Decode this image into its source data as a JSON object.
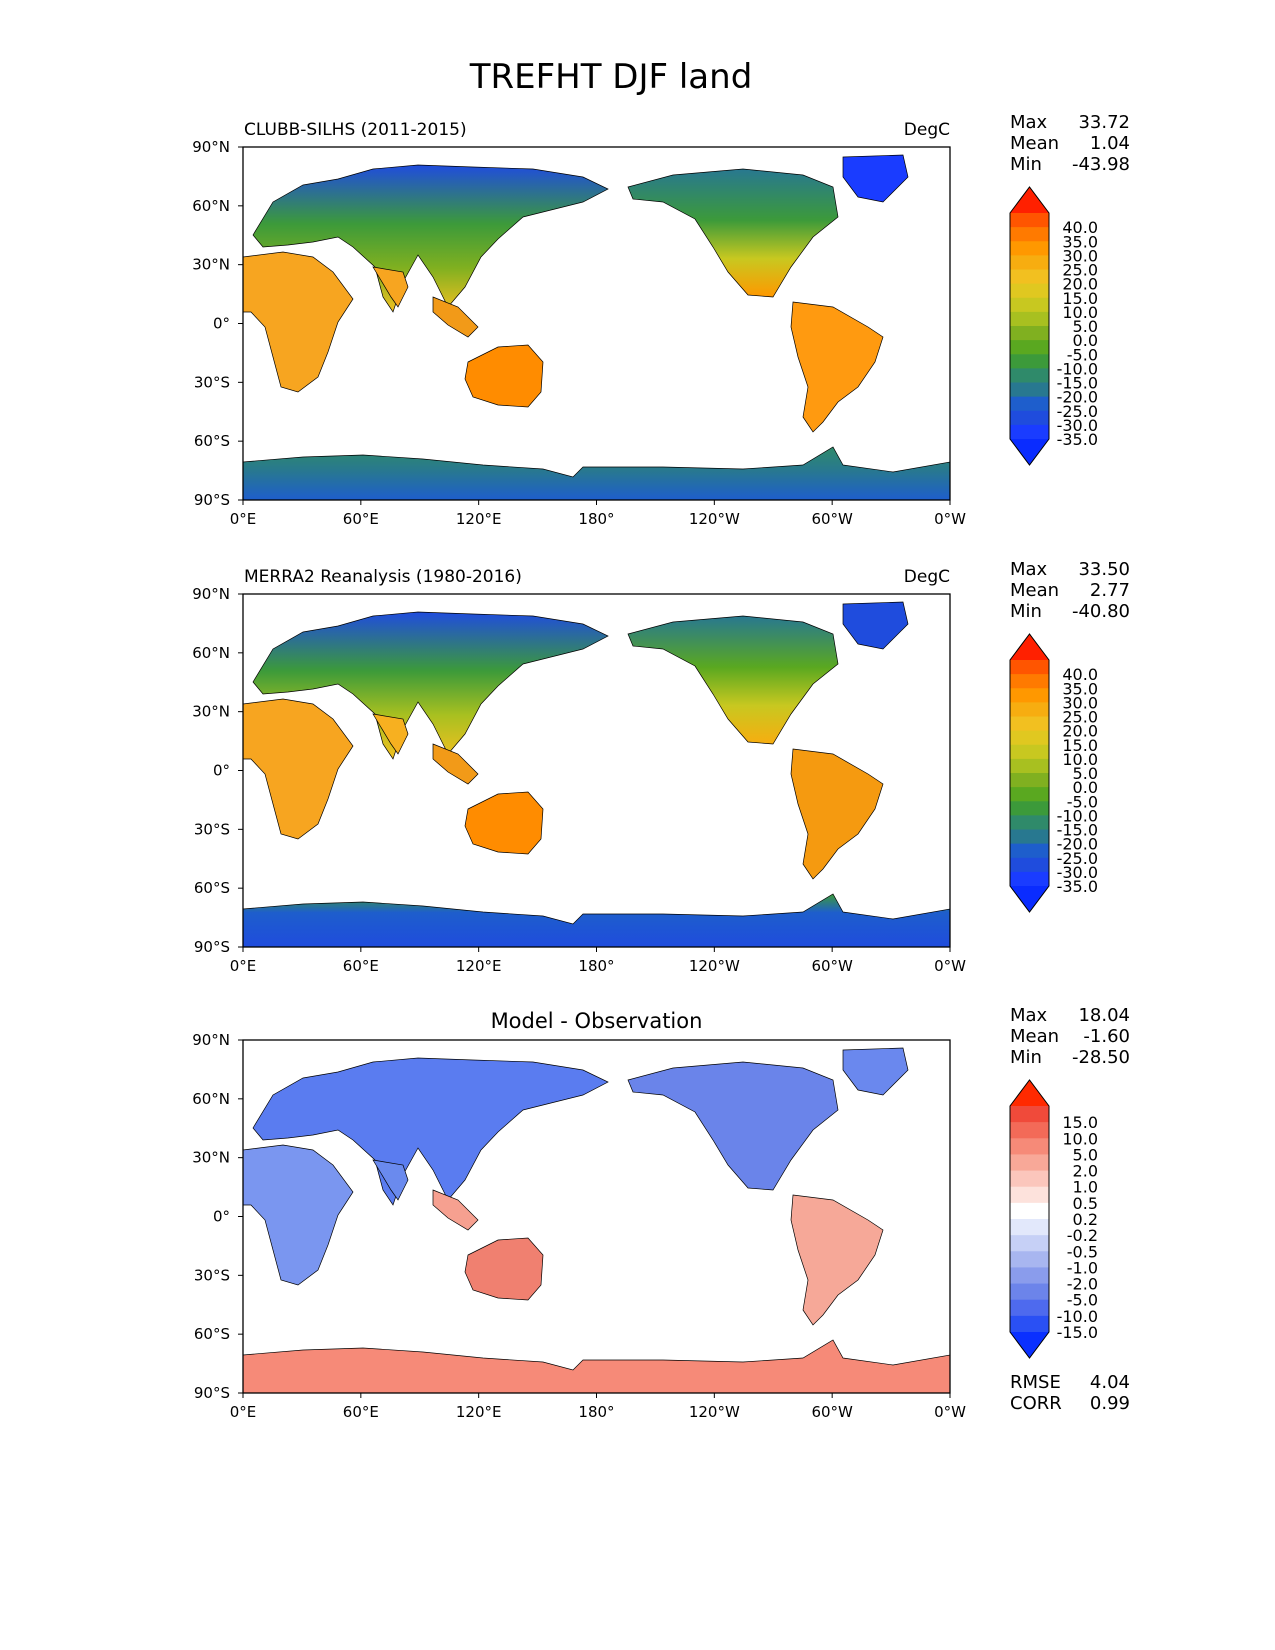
{
  "title": "TREFHT DJF land",
  "axes": {
    "lat_ticks": [
      "90°N",
      "60°N",
      "30°N",
      "0°",
      "30°S",
      "60°S",
      "90°S"
    ],
    "lon_ticks": [
      "0°E",
      "60°E",
      "120°E",
      "180°",
      "120°W",
      "60°W",
      "0°W"
    ]
  },
  "panels": [
    {
      "id": "model",
      "left_title": "CLUBB-SILHS (2011-2015)",
      "center_title": "",
      "right_title": "DegC",
      "stats": {
        "labels": [
          "Max",
          "Mean",
          "Min"
        ],
        "values": [
          "33.72",
          "1.04",
          "-43.98"
        ]
      },
      "colorbar": {
        "labels": [
          "40.0",
          "35.0",
          "30.0",
          "25.0",
          "20.0",
          "15.0",
          "10.0",
          "5.0",
          "0.0",
          "-5.0",
          "-10.0",
          "-15.0",
          "-20.0",
          "-25.0",
          "-30.0",
          "-35.0"
        ],
        "colors": [
          "#ff2000",
          "#ff5500",
          "#ff7a00",
          "#ff9800",
          "#f7ad10",
          "#f2c020",
          "#e0c820",
          "#c8c820",
          "#a8c020",
          "#80b020",
          "#5aa820",
          "#3c9a3a",
          "#2f8a6a",
          "#287890",
          "#1e5ecc",
          "#1f4cdd",
          "#1a3cff",
          "#0a2cff"
        ]
      },
      "stats_bottom": null,
      "map_style": "abs_model"
    },
    {
      "id": "obs",
      "left_title": "MERRA2 Reanalysis (1980-2016)",
      "center_title": "",
      "right_title": "DegC",
      "stats": {
        "labels": [
          "Max",
          "Mean",
          "Min"
        ],
        "values": [
          "33.50",
          "2.77",
          "-40.80"
        ]
      },
      "colorbar": {
        "labels": [
          "40.0",
          "35.0",
          "30.0",
          "25.0",
          "20.0",
          "15.0",
          "10.0",
          "5.0",
          "0.0",
          "-5.0",
          "-10.0",
          "-15.0",
          "-20.0",
          "-25.0",
          "-30.0",
          "-35.0"
        ],
        "colors": [
          "#ff2000",
          "#ff5500",
          "#ff7a00",
          "#ff9800",
          "#f7ad10",
          "#f2c020",
          "#e0c820",
          "#c8c820",
          "#a8c020",
          "#80b020",
          "#5aa820",
          "#3c9a3a",
          "#2f8a6a",
          "#287890",
          "#1e5ecc",
          "#1f4cdd",
          "#1a3cff",
          "#0a2cff"
        ]
      },
      "stats_bottom": null,
      "map_style": "abs_obs"
    },
    {
      "id": "diff",
      "left_title": "",
      "center_title": "Model - Observation",
      "right_title": "",
      "stats": {
        "labels": [
          "Max",
          "Mean",
          "Min"
        ],
        "values": [
          "18.04",
          "-1.60",
          "-28.50"
        ]
      },
      "colorbar": {
        "labels": [
          "15.0",
          "10.0",
          "5.0",
          "2.0",
          "1.0",
          "0.5",
          "0.2",
          "-0.2",
          "-0.5",
          "-1.0",
          "-2.0",
          "-5.0",
          "-10.0",
          "-15.0"
        ],
        "colors": [
          "#ff2a00",
          "#f04a3a",
          "#f36a58",
          "#f68a78",
          "#f8a898",
          "#fbc6bc",
          "#fde2dc",
          "#ffffff",
          "#e2e8fb",
          "#c6d0f6",
          "#a8b6f0",
          "#8a9cec",
          "#6c84ea",
          "#4e6aee",
          "#2a50f4",
          "#0a30ff"
        ]
      },
      "stats_bottom": {
        "labels": [
          "RMSE",
          "CORR"
        ],
        "values": [
          "4.04",
          "0.99"
        ]
      },
      "map_style": "diff"
    }
  ]
}
